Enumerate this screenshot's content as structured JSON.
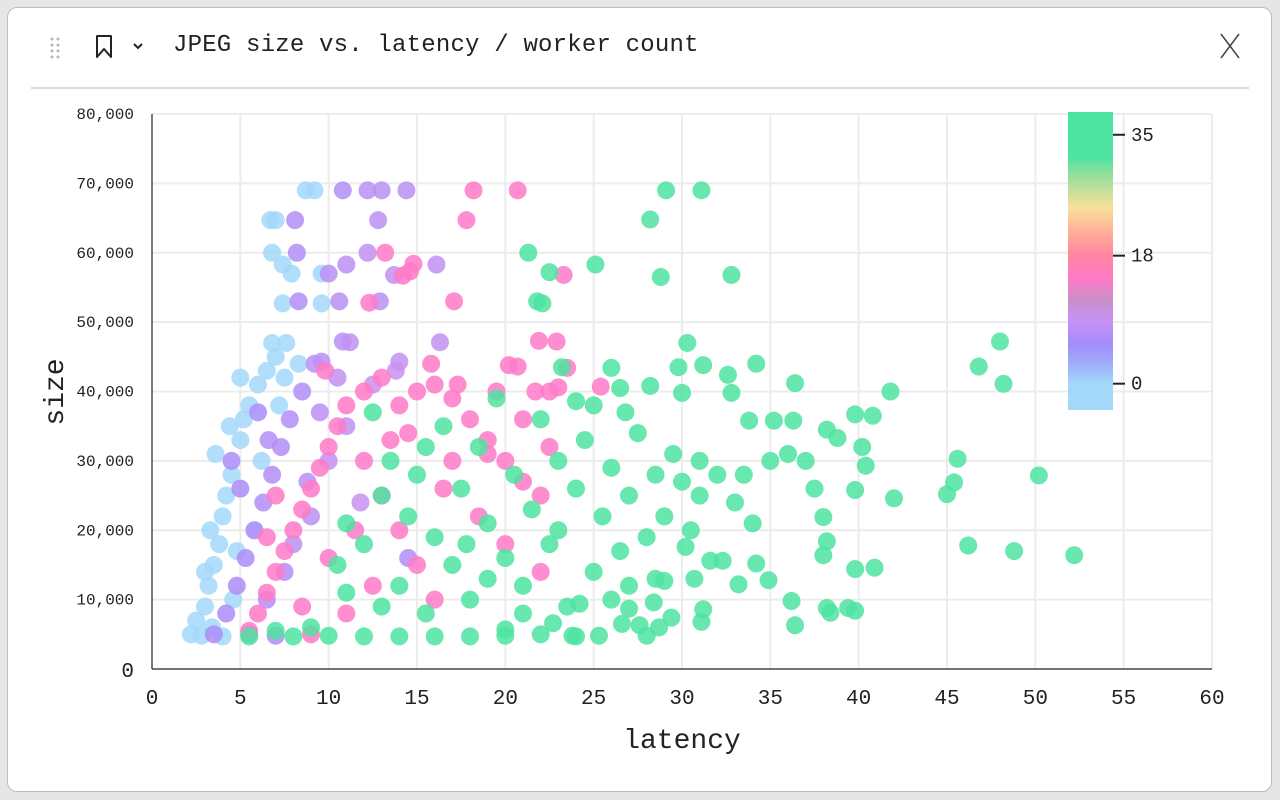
{
  "header": {
    "title": "JPEG size vs. latency / worker count",
    "icons": [
      "drag-handle-icon",
      "bookmark-icon",
      "chevron-down-icon",
      "close-icon"
    ]
  },
  "chart_data": {
    "type": "scatter",
    "title": "JPEG size vs. latency / worker count",
    "xlabel": "latency",
    "ylabel": "size",
    "xlim": [
      0,
      60
    ],
    "ylim": [
      0,
      80000
    ],
    "xticks": [
      0,
      5,
      10,
      15,
      20,
      25,
      30,
      35,
      40,
      45,
      50,
      55,
      60
    ],
    "yticks": [
      0,
      10000,
      20000,
      30000,
      40000,
      50000,
      60000,
      70000,
      80000
    ],
    "ytick_labels": [
      "0",
      "10,000",
      "20,000",
      "30,000",
      "40,000",
      "50,000",
      "60,000",
      "70,000",
      "80,000"
    ],
    "grid": true,
    "color_by": "worker count",
    "colorbar": {
      "ticks": [
        0,
        18,
        35
      ],
      "range": [
        -3.7,
        38.2
      ]
    },
    "colors": {
      "w0": "#a3d8fa",
      "w5": "#a58cfb",
      "w15": "#ff7ac8",
      "w35": "#4de3a0"
    },
    "points_columns": [
      "latency",
      "size",
      "workers"
    ],
    "points": [
      [
        8.7,
        69000,
        0
      ],
      [
        9.2,
        69000,
        0
      ],
      [
        6.7,
        64700,
        0
      ],
      [
        7.0,
        64700,
        0
      ],
      [
        6.8,
        60000,
        0
      ],
      [
        7.4,
        58300,
        0
      ],
      [
        7.9,
        57000,
        0
      ],
      [
        9.6,
        57000,
        0
      ],
      [
        7.4,
        52700,
        0
      ],
      [
        9.6,
        52700,
        0
      ],
      [
        7.6,
        47000,
        0
      ],
      [
        5.0,
        42000,
        0
      ],
      [
        2.2,
        5000,
        0
      ],
      [
        2.5,
        7000,
        0
      ],
      [
        3.0,
        9000,
        0
      ],
      [
        3.2,
        12000,
        0
      ],
      [
        3.5,
        15000,
        0
      ],
      [
        3.8,
        18000,
        0
      ],
      [
        4.0,
        22000,
        0
      ],
      [
        4.2,
        25000,
        0
      ],
      [
        4.5,
        28000,
        0
      ],
      [
        3.6,
        31000,
        0
      ],
      [
        5.0,
        33000,
        0
      ],
      [
        5.2,
        36000,
        0
      ],
      [
        5.5,
        38000,
        0
      ],
      [
        6.0,
        41000,
        0
      ],
      [
        6.5,
        43000,
        0
      ],
      [
        7.0,
        45000,
        0
      ],
      [
        2.8,
        4800,
        0
      ],
      [
        3.4,
        6000,
        0
      ],
      [
        4.6,
        10000,
        0
      ],
      [
        5.8,
        20000,
        0
      ],
      [
        6.2,
        30000,
        0
      ],
      [
        7.2,
        38000,
        0
      ],
      [
        7.5,
        42000,
        0
      ],
      [
        8.3,
        44000,
        0
      ],
      [
        4.0,
        4700,
        0
      ],
      [
        3.0,
        14000,
        0
      ],
      [
        4.8,
        17000,
        0
      ],
      [
        3.3,
        20000,
        0
      ],
      [
        4.4,
        35000,
        0
      ],
      [
        6.8,
        47000,
        0
      ],
      [
        10.8,
        69000,
        6
      ],
      [
        12.2,
        69000,
        7
      ],
      [
        13.0,
        69000,
        7
      ],
      [
        14.4,
        69000,
        7
      ],
      [
        8.1,
        64700,
        6
      ],
      [
        12.8,
        64700,
        7
      ],
      [
        8.2,
        60000,
        6
      ],
      [
        12.2,
        60000,
        8
      ],
      [
        11.0,
        58300,
        7
      ],
      [
        16.1,
        58300,
        8
      ],
      [
        10.0,
        57000,
        7
      ],
      [
        13.7,
        56800,
        8
      ],
      [
        8.3,
        53000,
        6
      ],
      [
        10.6,
        53000,
        7
      ],
      [
        12.9,
        53000,
        7
      ],
      [
        16.3,
        47100,
        8
      ],
      [
        10.8,
        47200,
        7
      ],
      [
        11.2,
        47100,
        8
      ],
      [
        9.6,
        44300,
        7
      ],
      [
        14.0,
        44300,
        8
      ],
      [
        3.5,
        5000,
        5
      ],
      [
        4.2,
        8000,
        5
      ],
      [
        4.8,
        12000,
        5
      ],
      [
        5.3,
        16000,
        5
      ],
      [
        5.8,
        20000,
        6
      ],
      [
        6.3,
        24000,
        6
      ],
      [
        6.8,
        28000,
        6
      ],
      [
        7.3,
        32000,
        6
      ],
      [
        7.8,
        36000,
        6
      ],
      [
        8.5,
        40000,
        6
      ],
      [
        9.2,
        44000,
        7
      ],
      [
        10.5,
        42000,
        8
      ],
      [
        6.0,
        37000,
        5
      ],
      [
        5.0,
        26000,
        5
      ],
      [
        6.5,
        10000,
        6
      ],
      [
        7.5,
        14000,
        6
      ],
      [
        8.0,
        18000,
        7
      ],
      [
        9.0,
        22000,
        7
      ],
      [
        10.0,
        30000,
        8
      ],
      [
        11.0,
        35000,
        8
      ],
      [
        12.5,
        41000,
        9
      ],
      [
        13.8,
        43000,
        9
      ],
      [
        8.8,
        27000,
        7
      ],
      [
        9.5,
        37000,
        7
      ],
      [
        7.0,
        4800,
        6
      ],
      [
        5.5,
        5000,
        5
      ],
      [
        4.5,
        30000,
        5
      ],
      [
        6.6,
        33000,
        6
      ],
      [
        14.5,
        16000,
        6
      ],
      [
        11.8,
        24000,
        9
      ],
      [
        18.2,
        69000,
        15
      ],
      [
        20.7,
        69000,
        15
      ],
      [
        17.8,
        64700,
        15
      ],
      [
        13.2,
        60000,
        15
      ],
      [
        14.8,
        58400,
        15
      ],
      [
        14.6,
        57300,
        15
      ],
      [
        14.2,
        56700,
        15
      ],
      [
        12.3,
        52800,
        15
      ],
      [
        17.1,
        53000,
        15
      ],
      [
        23.3,
        56800,
        15
      ],
      [
        21.9,
        47300,
        15
      ],
      [
        22.9,
        47200,
        15
      ],
      [
        20.2,
        43800,
        15
      ],
      [
        20.7,
        43600,
        15
      ],
      [
        23.5,
        43400,
        15
      ],
      [
        25.4,
        40700,
        15
      ],
      [
        21.7,
        40000,
        15
      ],
      [
        22.5,
        40000,
        15
      ],
      [
        23.0,
        40600,
        15
      ],
      [
        5.5,
        5500,
        15
      ],
      [
        6.0,
        8000,
        15
      ],
      [
        6.5,
        11000,
        15
      ],
      [
        7.0,
        14000,
        15
      ],
      [
        7.5,
        17000,
        15
      ],
      [
        8.0,
        20000,
        15
      ],
      [
        8.5,
        23000,
        15
      ],
      [
        9.0,
        26000,
        15
      ],
      [
        9.5,
        29000,
        15
      ],
      [
        10.0,
        32000,
        15
      ],
      [
        10.5,
        35000,
        15
      ],
      [
        11.0,
        38000,
        15
      ],
      [
        12.0,
        40000,
        15
      ],
      [
        13.0,
        42000,
        15
      ],
      [
        14.0,
        38000,
        15
      ],
      [
        15.0,
        40000,
        15
      ],
      [
        16.0,
        41000,
        15
      ],
      [
        17.0,
        39000,
        15
      ],
      [
        18.0,
        36000,
        15
      ],
      [
        19.0,
        33000,
        15
      ],
      [
        20.0,
        30000,
        15
      ],
      [
        21.0,
        27000,
        15
      ],
      [
        22.0,
        25000,
        15
      ],
      [
        12.0,
        30000,
        15
      ],
      [
        13.0,
        25000,
        15
      ],
      [
        14.0,
        20000,
        15
      ],
      [
        15.0,
        15000,
        15
      ],
      [
        16.0,
        10000,
        15
      ],
      [
        11.0,
        8000,
        15
      ],
      [
        12.5,
        12000,
        15
      ],
      [
        9.0,
        5000,
        15
      ],
      [
        17.0,
        30000,
        15
      ],
      [
        18.5,
        22000,
        15
      ],
      [
        20.0,
        18000,
        15
      ],
      [
        22.0,
        14000,
        15
      ],
      [
        14.5,
        34000,
        15
      ],
      [
        11.5,
        20000,
        15
      ],
      [
        10.0,
        16000,
        15
      ],
      [
        8.5,
        9000,
        15
      ],
      [
        16.5,
        26000,
        15
      ],
      [
        19.5,
        40000,
        15
      ],
      [
        21.0,
        36000,
        15
      ],
      [
        9.8,
        43000,
        15
      ],
      [
        15.8,
        44000,
        15
      ],
      [
        17.3,
        41000,
        15
      ],
      [
        19.0,
        31000,
        15
      ],
      [
        22.5,
        32000,
        15
      ],
      [
        7.0,
        25000,
        15
      ],
      [
        6.5,
        19000,
        15
      ],
      [
        13.5,
        33000,
        15
      ],
      [
        29.1,
        69000,
        35
      ],
      [
        31.1,
        69000,
        35
      ],
      [
        28.2,
        64800,
        35
      ],
      [
        21.3,
        60000,
        35
      ],
      [
        25.1,
        58300,
        35
      ],
      [
        22.5,
        57200,
        35
      ],
      [
        28.8,
        56500,
        35
      ],
      [
        32.8,
        56800,
        35
      ],
      [
        21.8,
        53000,
        35
      ],
      [
        22.1,
        52700,
        35
      ],
      [
        30.3,
        47000,
        35
      ],
      [
        48.0,
        47200,
        35
      ],
      [
        46.8,
        43600,
        35
      ],
      [
        48.2,
        41100,
        35
      ],
      [
        41.8,
        40000,
        35
      ],
      [
        36.4,
        41200,
        35
      ],
      [
        34.2,
        44000,
        35
      ],
      [
        32.6,
        42400,
        35
      ],
      [
        31.2,
        43800,
        35
      ],
      [
        29.8,
        43500,
        35
      ],
      [
        26.0,
        43400,
        35
      ],
      [
        23.2,
        43500,
        35
      ],
      [
        24.0,
        38600,
        35
      ],
      [
        26.5,
        40500,
        35
      ],
      [
        28.2,
        40800,
        35
      ],
      [
        30.0,
        39800,
        35
      ],
      [
        32.8,
        39800,
        35
      ],
      [
        33.8,
        35800,
        35
      ],
      [
        35.2,
        35800,
        35
      ],
      [
        36.3,
        35800,
        35
      ],
      [
        38.2,
        34500,
        35
      ],
      [
        39.8,
        36700,
        35
      ],
      [
        40.8,
        36500,
        35
      ],
      [
        38.8,
        33300,
        35
      ],
      [
        40.2,
        32000,
        35
      ],
      [
        40.4,
        29300,
        35
      ],
      [
        45.6,
        30300,
        35
      ],
      [
        50.2,
        27900,
        35
      ],
      [
        45.0,
        25200,
        35
      ],
      [
        45.4,
        26900,
        35
      ],
      [
        42.0,
        24600,
        35
      ],
      [
        39.8,
        25800,
        35
      ],
      [
        37.5,
        26000,
        35
      ],
      [
        38.0,
        21900,
        35
      ],
      [
        38.2,
        18400,
        35
      ],
      [
        38.0,
        16400,
        35
      ],
      [
        46.2,
        17800,
        35
      ],
      [
        48.8,
        17000,
        35
      ],
      [
        52.2,
        16400,
        35
      ],
      [
        40.9,
        14600,
        35
      ],
      [
        39.8,
        14400,
        35
      ],
      [
        38.2,
        8800,
        35
      ],
      [
        38.4,
        8100,
        35
      ],
      [
        39.4,
        8800,
        35
      ],
      [
        39.8,
        8400,
        35
      ],
      [
        36.2,
        9800,
        35
      ],
      [
        36.4,
        6300,
        35
      ],
      [
        34.9,
        12800,
        35
      ],
      [
        33.2,
        12200,
        35
      ],
      [
        34.2,
        15200,
        35
      ],
      [
        32.3,
        15600,
        35
      ],
      [
        30.2,
        17600,
        35
      ],
      [
        31.6,
        15600,
        35
      ],
      [
        31.2,
        8600,
        35
      ],
      [
        31.1,
        6800,
        35
      ],
      [
        29.4,
        7400,
        35
      ],
      [
        28.7,
        6000,
        35
      ],
      [
        28.0,
        4800,
        35
      ],
      [
        25.3,
        4800,
        35
      ],
      [
        23.8,
        4800,
        35
      ],
      [
        22.0,
        5000,
        35
      ],
      [
        20.0,
        5700,
        35
      ],
      [
        22.7,
        6600,
        35
      ],
      [
        24.2,
        9400,
        35
      ],
      [
        27.0,
        8700,
        35
      ],
      [
        28.4,
        9600,
        35
      ],
      [
        28.5,
        13000,
        35
      ],
      [
        29.0,
        12700,
        35
      ],
      [
        30.7,
        13000,
        35
      ],
      [
        26.6,
        6500,
        35
      ],
      [
        27.6,
        6300,
        35
      ],
      [
        5.5,
        4700,
        35
      ],
      [
        7.0,
        5500,
        35
      ],
      [
        8.0,
        4700,
        35
      ],
      [
        9.0,
        6000,
        35
      ],
      [
        10.0,
        4800,
        35
      ],
      [
        10.5,
        15000,
        35
      ],
      [
        11.0,
        21000,
        35
      ],
      [
        12.0,
        18000,
        35
      ],
      [
        12.5,
        37000,
        35
      ],
      [
        13.0,
        25000,
        35
      ],
      [
        13.5,
        30000,
        35
      ],
      [
        14.0,
        12000,
        35
      ],
      [
        14.5,
        22000,
        35
      ],
      [
        15.0,
        28000,
        35
      ],
      [
        15.5,
        8000,
        35
      ],
      [
        16.0,
        19000,
        35
      ],
      [
        16.5,
        35000,
        35
      ],
      [
        17.0,
        15000,
        35
      ],
      [
        17.5,
        26000,
        35
      ],
      [
        18.0,
        10000,
        35
      ],
      [
        18.5,
        32000,
        35
      ],
      [
        19.0,
        21000,
        35
      ],
      [
        19.5,
        39000,
        35
      ],
      [
        20.0,
        16000,
        35
      ],
      [
        20.5,
        28000,
        35
      ],
      [
        21.0,
        12000,
        35
      ],
      [
        21.5,
        23000,
        35
      ],
      [
        22.0,
        36000,
        35
      ],
      [
        22.5,
        18000,
        35
      ],
      [
        23.0,
        30000,
        35
      ],
      [
        23.5,
        9000,
        35
      ],
      [
        24.0,
        26000,
        35
      ],
      [
        24.5,
        33000,
        35
      ],
      [
        25.0,
        14000,
        35
      ],
      [
        25.5,
        22000,
        35
      ],
      [
        26.0,
        29000,
        35
      ],
      [
        26.5,
        17000,
        35
      ],
      [
        27.0,
        25000,
        35
      ],
      [
        27.5,
        34000,
        35
      ],
      [
        28.0,
        19000,
        35
      ],
      [
        28.5,
        28000,
        35
      ],
      [
        29.0,
        22000,
        35
      ],
      [
        29.5,
        31000,
        35
      ],
      [
        30.0,
        27000,
        35
      ],
      [
        31.0,
        30000,
        35
      ],
      [
        32.0,
        28000,
        35
      ],
      [
        33.0,
        24000,
        35
      ],
      [
        34.0,
        21000,
        35
      ],
      [
        35.0,
        30000,
        35
      ],
      [
        36.0,
        31000,
        35
      ],
      [
        37.0,
        30000,
        35
      ],
      [
        12.0,
        4700,
        35
      ],
      [
        14.0,
        4700,
        35
      ],
      [
        16.0,
        4700,
        35
      ],
      [
        18.0,
        4700,
        35
      ],
      [
        20.0,
        4800,
        35
      ],
      [
        13.0,
        9000,
        35
      ],
      [
        11.0,
        11000,
        35
      ],
      [
        19.0,
        13000,
        35
      ],
      [
        21.0,
        8000,
        35
      ],
      [
        24.0,
        4700,
        35
      ],
      [
        26.0,
        10000,
        35
      ],
      [
        31.0,
        25000,
        35
      ],
      [
        30.5,
        20000,
        35
      ],
      [
        27.0,
        12000,
        35
      ],
      [
        33.5,
        28000,
        35
      ],
      [
        25.0,
        38000,
        35
      ],
      [
        15.5,
        32000,
        35
      ],
      [
        17.8,
        18000,
        35
      ],
      [
        23.0,
        20000,
        35
      ],
      [
        26.8,
        37000,
        35
      ]
    ]
  }
}
